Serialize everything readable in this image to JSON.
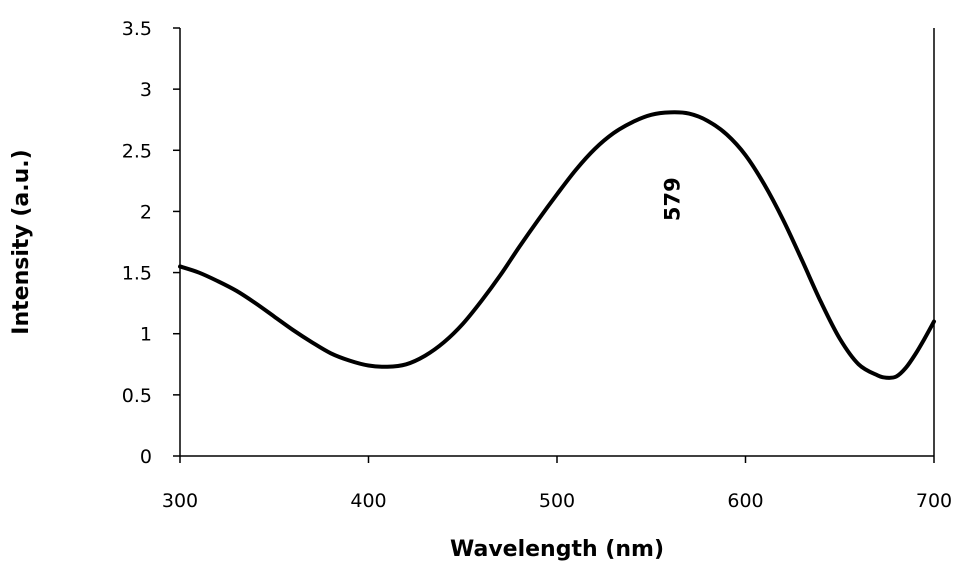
{
  "chart_data": {
    "type": "line",
    "xlabel": "Wavelength (nm)",
    "ylabel": "Intensity (a.u.)",
    "xlim": [
      300,
      700
    ],
    "ylim": [
      0,
      3.5
    ],
    "x_ticks": [
      "300",
      "400",
      "500",
      "600",
      "700"
    ],
    "y_ticks": [
      "0",
      "0.5",
      "1",
      "1.5",
      "2",
      "2.5",
      "3",
      "3.5"
    ],
    "grid": false,
    "legend": "none",
    "line_color": "#000000",
    "annotations": [
      {
        "text": "579",
        "x": 565,
        "y": 2.1,
        "rotation": "vertical"
      }
    ],
    "series": [
      {
        "x": [
          300,
          310,
          320,
          330,
          340,
          350,
          360,
          370,
          380,
          390,
          400,
          410,
          420,
          430,
          440,
          450,
          460,
          470,
          480,
          490,
          500,
          510,
          520,
          530,
          540,
          550,
          560,
          570,
          580,
          590,
          600,
          610,
          620,
          630,
          640,
          650,
          660,
          670,
          675,
          680,
          685,
          690,
          695,
          700
        ],
        "y": [
          1.55,
          1.5,
          1.43,
          1.35,
          1.25,
          1.14,
          1.03,
          0.93,
          0.84,
          0.78,
          0.74,
          0.73,
          0.75,
          0.82,
          0.93,
          1.08,
          1.27,
          1.48,
          1.71,
          1.93,
          2.14,
          2.34,
          2.51,
          2.64,
          2.73,
          2.79,
          2.81,
          2.8,
          2.74,
          2.63,
          2.46,
          2.22,
          1.93,
          1.6,
          1.26,
          0.96,
          0.75,
          0.66,
          0.64,
          0.65,
          0.72,
          0.83,
          0.96,
          1.1
        ]
      }
    ]
  }
}
